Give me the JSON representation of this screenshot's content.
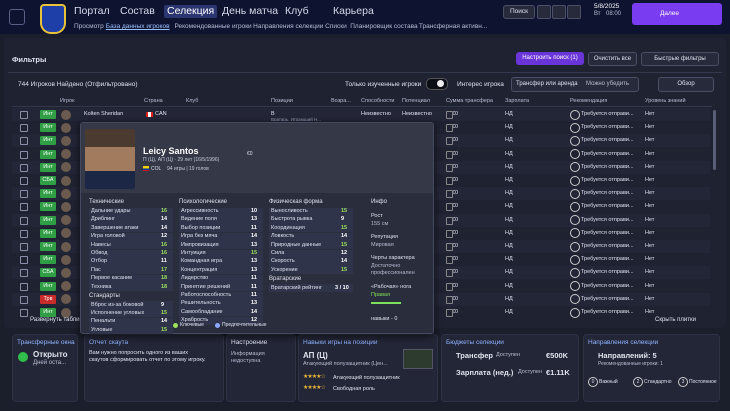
{
  "nav": {
    "tabs": [
      "Портал",
      "Состав",
      "Селекция",
      "День матча",
      "Клуб",
      "Карьера"
    ],
    "active": 2,
    "subtabs": [
      "Просмотр",
      "База данных игроков",
      "Рекомендованные игроки",
      "Направления селекции",
      "Списки",
      "Планировщик состава",
      "Трансферная активн..."
    ],
    "subactive": 1,
    "search": "Поиск",
    "date": "5/8/2025",
    "weekday": "Вт",
    "time": "08:00",
    "continue": "Далее"
  },
  "filters": {
    "title": "Фильтры",
    "configure": "Настроить поиск (1)",
    "clear": "Очистить все",
    "quick": "Быстрые фильтры"
  },
  "toolbar": {
    "count": "744 Игроков Найдено (Отфильтровано)",
    "scouted_only": "Только изученные игроки",
    "interest": "Интерес игрока",
    "transfer": "Трансфер или аренда",
    "persuade": "Можно убедить",
    "view": "Обзор"
  },
  "table": {
    "columns": [
      "Игрок",
      "Страна",
      "Клуб",
      "Позиции",
      "Возра...",
      "Способности",
      "Потенциал",
      "Сумма трансфера",
      "Зарплата",
      "Рекомендация",
      "Уровень знаний"
    ],
    "rows": [
      {
        "tag": "Инт",
        "tag_color": "#2f9e44",
        "name": "Kolten Sheridan",
        "nation": "CAN",
        "position": "В",
        "position_detail": "Вратарь, Играющий Н...",
        "ability": "Неизвестно",
        "potential": "Неизвестно",
        "fee": "€0",
        "wage": "НД",
        "rec": "Требуется отправи...",
        "knowledge": "Нет"
      },
      {
        "tag": "Инт",
        "tag_color": "#2f9e44",
        "fee": "€0",
        "wage": "НД",
        "rec": "Требуется отправи...",
        "knowledge": "Нет"
      },
      {
        "tag": "Инт",
        "tag_color": "#2f9e44",
        "fee": "€0",
        "wage": "НД",
        "rec": "Требуется отправи...",
        "knowledge": "Нет"
      },
      {
        "tag": "Инт",
        "tag_color": "#2f9e44",
        "fee": "€0",
        "wage": "НД",
        "rec": "Требуется отправи...",
        "knowledge": "Нет"
      },
      {
        "tag": "Инт",
        "tag_color": "#2f9e44",
        "fee": "€0",
        "wage": "НД",
        "rec": "Требуется отправи...",
        "knowledge": "Нет"
      },
      {
        "tag": "СБА",
        "tag_color": "#2f9e44",
        "fee": "€0",
        "wage": "НД",
        "rec": "Требуется отправи...",
        "knowledge": "Нет"
      },
      {
        "tag": "Инт",
        "tag_color": "#2f9e44",
        "fee": "€0",
        "wage": "НД",
        "rec": "Требуется отправи...",
        "knowledge": "Нет"
      },
      {
        "tag": "Инт",
        "tag_color": "#2f9e44",
        "fee": "€0",
        "wage": "НД",
        "rec": "Требуется отправи...",
        "knowledge": "Нет"
      },
      {
        "tag": "Инт",
        "tag_color": "#2f9e44",
        "fee": "€0",
        "wage": "НД",
        "rec": "Требуется отправи...",
        "knowledge": "Нет"
      },
      {
        "tag": "Инт",
        "tag_color": "#2f9e44",
        "fee": "€0",
        "wage": "НД",
        "rec": "Требуется отправи...",
        "knowledge": "Нет"
      },
      {
        "tag": "Инт",
        "tag_color": "#2f9e44",
        "fee": "€0",
        "wage": "НД",
        "rec": "Требуется отправи...",
        "knowledge": "Нет"
      },
      {
        "tag": "Инт",
        "tag_color": "#2f9e44",
        "fee": "€0",
        "wage": "НД",
        "rec": "Требуется отправи...",
        "knowledge": "Нет"
      },
      {
        "tag": "СБА",
        "tag_color": "#2f9e44",
        "fee": "€0",
        "wage": "НД",
        "rec": "Требуется отправи...",
        "knowledge": "Нет"
      },
      {
        "tag": "Инт",
        "tag_color": "#2f9e44",
        "fee": "€0",
        "wage": "НД",
        "rec": "Требуется отправи...",
        "knowledge": "Нет"
      },
      {
        "tag": "Трв",
        "tag_color": "#c92a2a",
        "fee": "€0",
        "wage": "НД",
        "rec": "Требуется отправи...",
        "knowledge": "Нет"
      },
      {
        "tag": "Инт",
        "tag_color": "#2f9e44",
        "fee": "€0",
        "wage": "НД",
        "rec": "Требуется отправи...",
        "knowledge": "Нет"
      }
    ],
    "expand": "Развернуть таблицу",
    "hide_tiles": "Скрыть плитки"
  },
  "player": {
    "name": "Leicy Santos",
    "subline": "П (Ц), АП (Ц) · 29 лет (16/5/1996)",
    "nation": "COL",
    "caps": "94 игры | 19 голов",
    "value": "€0",
    "groups": [
      {
        "title": "Технические",
        "attrs": [
          {
            "name": "Дальние удары",
            "value": 16
          },
          {
            "name": "Дриблинг",
            "value": 14
          },
          {
            "name": "Завершение атаки",
            "value": 14
          },
          {
            "name": "Игра головой",
            "value": 12
          },
          {
            "name": "Навесы",
            "value": 16
          },
          {
            "name": "Обвод",
            "value": 16
          },
          {
            "name": "Отбор",
            "value": 11
          },
          {
            "name": "Пас",
            "value": 17
          },
          {
            "name": "Первое касание",
            "value": 18
          },
          {
            "name": "Техника",
            "value": 18
          }
        ],
        "subtitle": "Стандарты",
        "subattrs": [
          {
            "name": "Вброс из-за боковой",
            "value": 9
          },
          {
            "name": "Исполнение угловых",
            "value": 15
          },
          {
            "name": "Пенальти",
            "value": 14
          },
          {
            "name": "Угловые",
            "value": 15
          }
        ]
      },
      {
        "title": "Психологические",
        "attrs": [
          {
            "name": "Агрессивность",
            "value": 10
          },
          {
            "name": "Видение поля",
            "value": 13
          },
          {
            "name": "Выбор позиции",
            "value": 11
          },
          {
            "name": "Игра без мяча",
            "value": 14
          },
          {
            "name": "Импровизация",
            "value": 13
          },
          {
            "name": "Интуиция",
            "value": 15
          },
          {
            "name": "Командная игра",
            "value": 13
          },
          {
            "name": "Концентрация",
            "value": 13
          },
          {
            "name": "Лидерство",
            "value": 11
          },
          {
            "name": "Принятие решений",
            "value": 11
          },
          {
            "name": "Работоспособность",
            "value": 11
          },
          {
            "name": "Решительность",
            "value": 13
          },
          {
            "name": "Самообладание",
            "value": 14
          },
          {
            "name": "Храбрость",
            "value": 12
          }
        ]
      },
      {
        "title": "Физическая форма",
        "attrs": [
          {
            "name": "Выносливость",
            "value": 15
          },
          {
            "name": "Быстрота рывка",
            "value": 9
          },
          {
            "name": "Координация",
            "value": 15
          },
          {
            "name": "Ловкость",
            "value": 14
          },
          {
            "name": "Природные данные",
            "value": 15
          },
          {
            "name": "Сила",
            "value": 12
          },
          {
            "name": "Скорость",
            "value": 14
          },
          {
            "name": "Ускорение",
            "value": 15
          }
        ],
        "subtitle": "Вратарские",
        "subattrs": [
          {
            "name": "Вратарский рейтинг",
            "value": "3 / 10"
          }
        ]
      }
    ],
    "info": {
      "title": "Инфо",
      "items": [
        {
          "label": "Рост",
          "value": "155 см"
        },
        {
          "label": "Репутация",
          "value": "Мировая"
        },
        {
          "label": "Черты характера",
          "value": "Достаточно профессионален"
        },
        {
          "label": "«Рабочая» нога",
          "value": "Правая"
        }
      ],
      "skills": "навыки - 0"
    },
    "legend": [
      "Ключевые",
      "Предпочтительные"
    ]
  },
  "panels": {
    "window": {
      "title": "Трансферные окна",
      "status": "Открыто",
      "days": "Дней оста..."
    },
    "scout": {
      "title": "Отчет скаута",
      "text": "Вам нужно попросить одного из ваших скаутов сформировать отчет по этому игроку."
    },
    "mood": {
      "title": "Настроение",
      "text": "Информация недоступна"
    },
    "roles": {
      "title": "Навыки игры на позиции",
      "position": "АП (Ц)",
      "role": "Атакующий полузащитник (Цен...",
      "list": [
        "Атакующий полузащитник",
        "Свободная роль"
      ]
    },
    "budget": {
      "title": "Бюджеты селекции",
      "rows": [
        {
          "label": "Трансфер",
          "state": "Доступен",
          "amount": "€500K"
        },
        {
          "label": "Зарплата (нед.)",
          "state": "Доступен",
          "amount": "€1.11K"
        }
      ]
    },
    "directions": {
      "title": "Направления селекции",
      "count": "Направлений: 5",
      "recommended": "Рекомендованные игроки: 1",
      "kinds": [
        {
          "n": "0",
          "label": "Важный"
        },
        {
          "n": "2",
          "label": "Стандартно"
        },
        {
          "n": "3",
          "label": "Постоянное"
        }
      ]
    }
  }
}
